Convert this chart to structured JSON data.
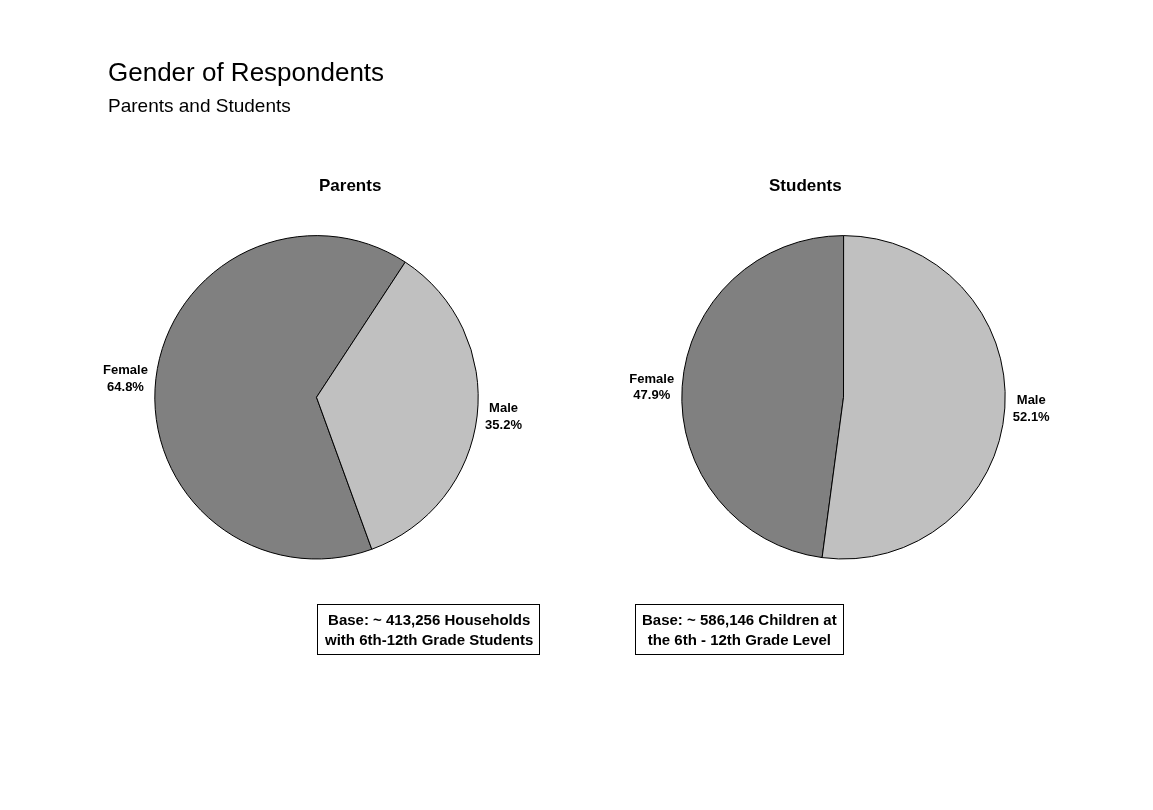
{
  "chart_data": [
    {
      "type": "other",
      "title": "Gender of Respondents",
      "subtitle": "Parents and Students"
    },
    {
      "type": "pie",
      "title": "Parents",
      "categories": [
        "Female",
        "Male"
      ],
      "values": [
        64.8,
        35.2
      ],
      "value_labels": [
        "64.8%",
        "35.2%"
      ],
      "colors": [
        "#808080",
        "#c0c0c0"
      ],
      "legend": false,
      "annotations": [
        "Base: ~ 413,256 Households with 6th-12th Grade Students"
      ]
    },
    {
      "type": "pie",
      "title": "Students",
      "categories": [
        "Female",
        "Male"
      ],
      "values": [
        47.9,
        52.1
      ],
      "value_labels": [
        "47.9%",
        "52.1%"
      ],
      "colors": [
        "#808080",
        "#c0c0c0"
      ],
      "legend": false,
      "annotations": [
        "Base: ~ 586,146 Children at the 6th - 12th Grade Level"
      ]
    }
  ]
}
